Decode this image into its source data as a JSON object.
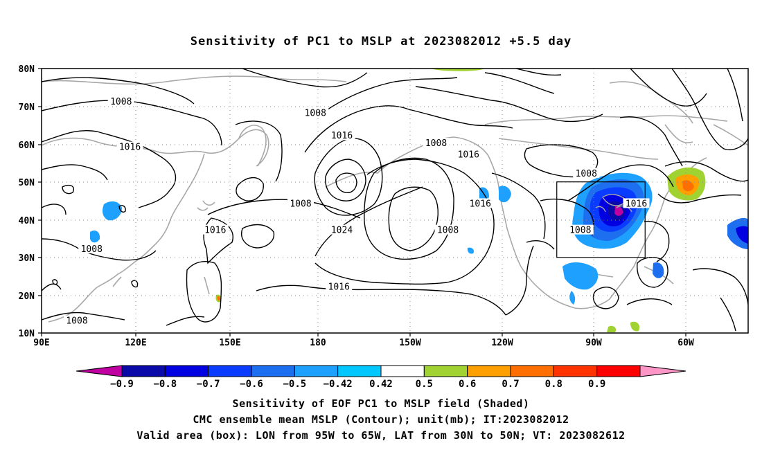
{
  "title": "Sensitivity of PC1 to MSLP at 2023082012 +5.5 day",
  "axes": {
    "lat_ticks": [
      "80N",
      "70N",
      "60N",
      "50N",
      "40N",
      "30N",
      "20N",
      "10N"
    ],
    "lon_ticks": [
      "90E",
      "120E",
      "150E",
      "180",
      "150W",
      "120W",
      "90W",
      "60W"
    ]
  },
  "contour_labels": [
    {
      "text": "1008",
      "lon": 117,
      "lat": 71
    },
    {
      "text": "1008",
      "lon": 183,
      "lat": 68
    },
    {
      "text": "1016",
      "lon": 120,
      "lat": 59
    },
    {
      "text": "1016",
      "lon": 192,
      "lat": 62
    },
    {
      "text": "1008",
      "lon": 224,
      "lat": 60
    },
    {
      "text": "1016",
      "lon": 235,
      "lat": 57
    },
    {
      "text": "1008",
      "lon": 275,
      "lat": 52
    },
    {
      "text": "1008",
      "lon": 178,
      "lat": 44
    },
    {
      "text": "1016",
      "lon": 149,
      "lat": 37
    },
    {
      "text": "1024",
      "lon": 192,
      "lat": 37
    },
    {
      "text": "1016",
      "lon": 239,
      "lat": 44
    },
    {
      "text": "1016",
      "lon": 292,
      "lat": 44
    },
    {
      "text": "1008",
      "lon": 107,
      "lat": 32
    },
    {
      "text": "1008",
      "lon": 228,
      "lat": 37
    },
    {
      "text": "1008",
      "lon": 273,
      "lat": 37
    },
    {
      "text": "1016",
      "lon": 191,
      "lat": 22
    },
    {
      "text": "1008",
      "lon": 102,
      "lat": 13
    }
  ],
  "valid_box": {
    "lon_min": 265,
    "lon_max": 295,
    "lat_min": 30,
    "lat_max": 50
  },
  "colorbar": {
    "labels": [
      "-0.9",
      "-0.8",
      "-0.7",
      "-0.6",
      "-0.5",
      "-0.42",
      "0.42",
      "0.5",
      "0.6",
      "0.7",
      "0.8",
      "0.9"
    ],
    "colors": [
      "#c000a0",
      "#0a0aa8",
      "#0000e0",
      "#0a3cff",
      "#1e6ef0",
      "#1ea0ff",
      "#00c8ff",
      "#ffffff",
      "#a0d232",
      "#ffa000",
      "#ff6e00",
      "#ff3200",
      "#ff0000",
      "#ff96c8"
    ]
  },
  "caption": {
    "line1": "Sensitivity of EOF PC1 to MSLP field (Shaded)",
    "line2": "CMC ensemble mean MSLP (Contour); unit(mb); IT:2023082012",
    "line3": "Valid area (box): LON from 95W to 65W, LAT from 30N to 50N; VT: 2023082612"
  }
}
